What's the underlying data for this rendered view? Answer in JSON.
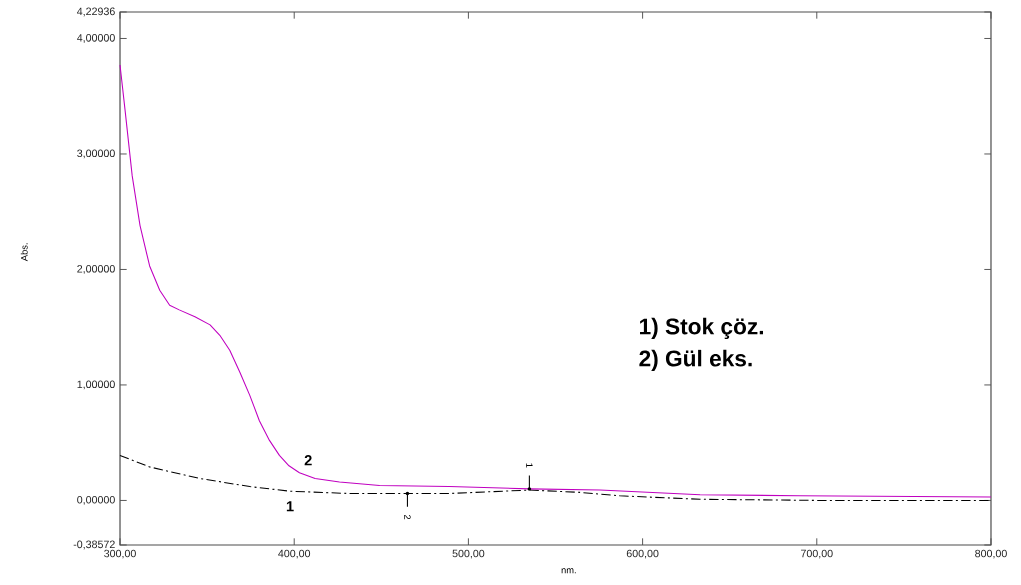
{
  "chart_data": {
    "type": "line",
    "xlabel": "nm.",
    "ylabel": "Abs.",
    "xlim": [
      300,
      800
    ],
    "ylim": [
      -0.38572,
      4.22936
    ],
    "xticks": [
      {
        "value": 300,
        "label": "300,00"
      },
      {
        "value": 400,
        "label": "400,00"
      },
      {
        "value": 500,
        "label": "500,00"
      },
      {
        "value": 600,
        "label": "600,00"
      },
      {
        "value": 700,
        "label": "700,00"
      },
      {
        "value": 800,
        "label": "800,00"
      }
    ],
    "yticks": [
      {
        "value": -0.38572,
        "label": "-0,38572"
      },
      {
        "value": 0,
        "label": "0,00000"
      },
      {
        "value": 1,
        "label": "1,00000"
      },
      {
        "value": 2,
        "label": "2,00000"
      },
      {
        "value": 3,
        "label": "3,00000"
      },
      {
        "value": 4,
        "label": "4,00000"
      },
      {
        "value": 4.22936,
        "label": "4,22936"
      }
    ],
    "series": [
      {
        "name": "1",
        "color": "#000000",
        "line_style": "dashed",
        "x": [
          300,
          317,
          346,
          374.5,
          397.6,
          432,
          489,
          535,
          564,
          587,
          633,
          702,
          800
        ],
        "values": [
          0.39,
          0.29,
          0.19,
          0.12,
          0.08,
          0.06,
          0.06,
          0.09,
          0.07,
          0.04,
          0.01,
          0.0,
          0.0
        ]
      },
      {
        "name": "2",
        "color": "#c000c0",
        "line_style": "solid",
        "x": [
          300,
          302.9,
          307,
          311.5,
          317,
          322.8,
          328.5,
          334,
          343,
          351.7,
          357.3,
          363,
          368.8,
          374.5,
          380,
          385.8,
          391.5,
          397,
          403,
          412,
          426,
          449,
          489,
          535,
          575.5,
          633,
          690,
          800
        ],
        "values": [
          3.77,
          3.38,
          2.81,
          2.38,
          2.03,
          1.82,
          1.69,
          1.65,
          1.59,
          1.52,
          1.43,
          1.3,
          1.11,
          0.91,
          0.69,
          0.52,
          0.39,
          0.3,
          0.24,
          0.19,
          0.16,
          0.13,
          0.12,
          0.1,
          0.09,
          0.05,
          0.04,
          0.03
        ]
      }
    ],
    "annotations": [
      "1) Stok çöz.",
      "2) Gül eks.",
      {
        "text": "2",
        "x": 465,
        "y": 0.06
      },
      {
        "text": "1",
        "x": 535,
        "y": 0.1
      }
    ],
    "grid": false,
    "marker": "none"
  }
}
